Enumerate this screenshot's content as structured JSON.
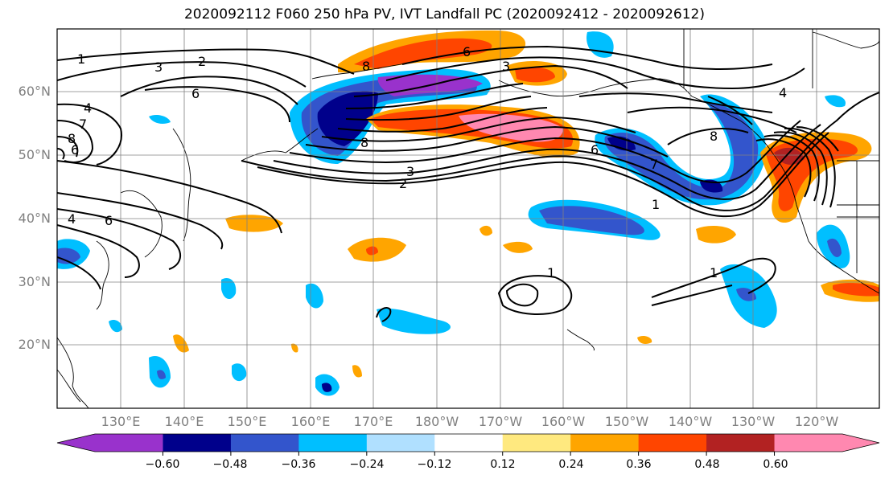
{
  "title": "2020092112 F060 250 hPa PV, IVT Landfall PC (2020092412 - 2020092612)",
  "latitudes": [
    "60°N",
    "50°N",
    "40°N",
    "30°N",
    "20°N"
  ],
  "longitudes": [
    "130°E",
    "140°E",
    "150°E",
    "160°E",
    "170°E",
    "180°W",
    "170°W",
    "160°W",
    "150°W",
    "140°W",
    "130°W",
    "120°W"
  ],
  "colorbar": {
    "ticks": [
      "−0.60",
      "−0.48",
      "−0.36",
      "−0.24",
      "−0.12",
      "0.12",
      "0.24",
      "0.36",
      "0.48",
      "0.60"
    ],
    "colors": [
      "#9932CC",
      "#00008B",
      "#3355CC",
      "#00BFFF",
      "#B0E0FF",
      "#FFFFFF",
      "#FFE97F",
      "#FFA500",
      "#FF4500",
      "#B22222",
      "#FF88B0"
    ]
  },
  "contour_labels": [
    "1",
    "3",
    "2",
    "6",
    "4",
    "7",
    "8",
    "6",
    "8",
    "3",
    "2",
    "8",
    "6",
    "6",
    "4",
    "8",
    "7",
    "1",
    "1",
    "1",
    "4",
    "6",
    "3"
  ],
  "colors": {
    "land": "#000000",
    "grid": "#808080"
  }
}
